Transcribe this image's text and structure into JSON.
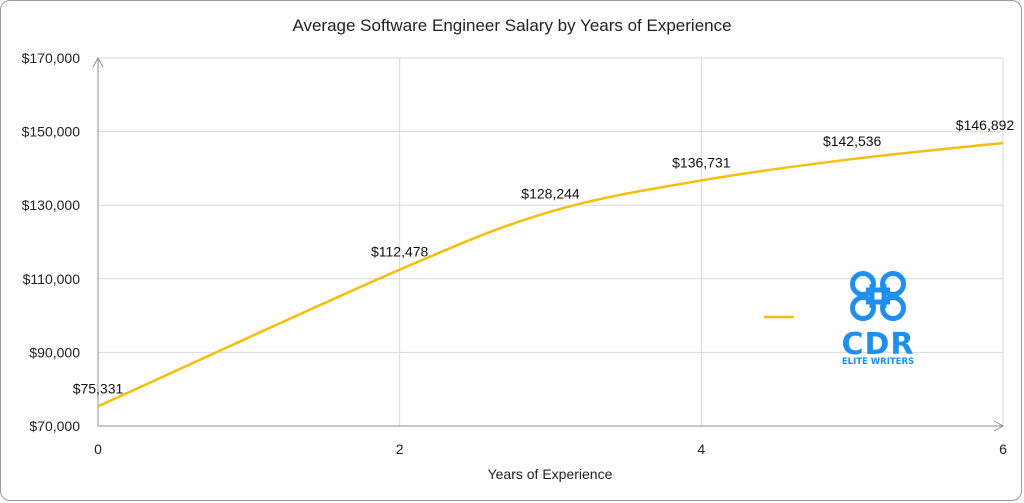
{
  "chart_data": {
    "type": "line",
    "title": "Average Software Engineer Salary by Years of Experience",
    "xlabel": "Years of Experience",
    "ylabel": "",
    "xlim": [
      0,
      6
    ],
    "ylim": [
      70000,
      170000
    ],
    "x_ticks": [
      0,
      2,
      4,
      6
    ],
    "y_ticks": [
      70000,
      90000,
      110000,
      130000,
      150000,
      170000
    ],
    "y_tick_labels": [
      "$70,000",
      "$90,000",
      "$110,000",
      "$130,000",
      "$150,000",
      "$170,000"
    ],
    "grid": true,
    "legend_position": "right",
    "smooth": true,
    "series": [
      {
        "name": "",
        "color": "#f5be0b",
        "x": [
          0,
          2,
          3,
          4,
          5,
          6
        ],
        "y": [
          75331,
          112478,
          128244,
          136731,
          142536,
          146892
        ],
        "labels": [
          "$75,331",
          "$112,478",
          "$128,244",
          "$136,731",
          "$142,536",
          "$146,892"
        ]
      }
    ]
  },
  "logo": {
    "name": "cdr-elite-writers-logo",
    "text": "CDR",
    "subtext": "ELITE WRITERS",
    "color": "#1e8ff0"
  }
}
